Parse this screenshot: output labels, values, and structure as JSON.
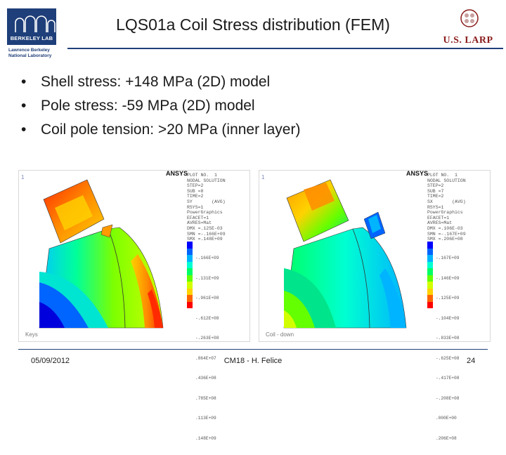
{
  "header": {
    "title": "LQS01a Coil Stress distribution (FEM)",
    "left_logo": {
      "box_text": "BERKELEY LAB",
      "subtitle": "Lawrence Berkeley\nNational Laboratory",
      "color": "#1f3f7a"
    },
    "right_logo": {
      "text": "U.S. LARP",
      "color": "#8b1c1c"
    }
  },
  "bullets": [
    "Shell stress: +148 MPa (2D) model",
    "Pole stress: -59 MPa (2D) model",
    "Coil pole tension: >20 MPa (inner layer)"
  ],
  "panels": [
    {
      "index": "1",
      "logo": "ANSYS",
      "caption": "Keys",
      "legend_text": "PLOT NO.  1\nNODAL SOLUTION\nSTEP=2\nSUB =8\nTIME=2\nSY       (AVG)\nRSYS=1\nPowerGraphics\nEFACET=1\nAVRES=Mat\nDMX =.125E-03\nSMN =-.166E+09\nSMX =.148E+09",
      "legend_values": [
        "-.166E+09",
        "-.131E+09",
        "-.961E+08",
        "-.612E+08",
        "-.263E+08",
        ".864E+07",
        ".436E+08",
        ".785E+08",
        ".113E+09",
        ".148E+09"
      ]
    },
    {
      "index": "1",
      "logo": "ANSYS",
      "caption": "Coil - down",
      "legend_text": "PLOT NO.  1\nNODAL SOLUTION\nSTEP=2\nSUB =7\nTIME=2\nSX       (AVG)\nRSYS=1\nPowerGraphics\nEFACET=1\nAVRES=Mat\nDMX =.106E-03\nSMN =-.167E+09\nSMX =.206E+08",
      "legend_values": [
        "-.167E+09",
        "-.146E+09",
        "-.125E+09",
        "-.104E+09",
        "-.833E+08",
        "-.625E+08",
        "-.417E+08",
        "-.208E+08",
        ".000E+00",
        ".206E+08"
      ]
    }
  ],
  "legend_colors": [
    "#0000ff",
    "#0063ff",
    "#00b4ff",
    "#00ffd2",
    "#00ff64",
    "#64ff00",
    "#d2ff00",
    "#ffd200",
    "#ff6400",
    "#ff0000"
  ],
  "footer": {
    "date": "05/09/2012",
    "center": "CM18 - H. Felice",
    "page": "24"
  }
}
